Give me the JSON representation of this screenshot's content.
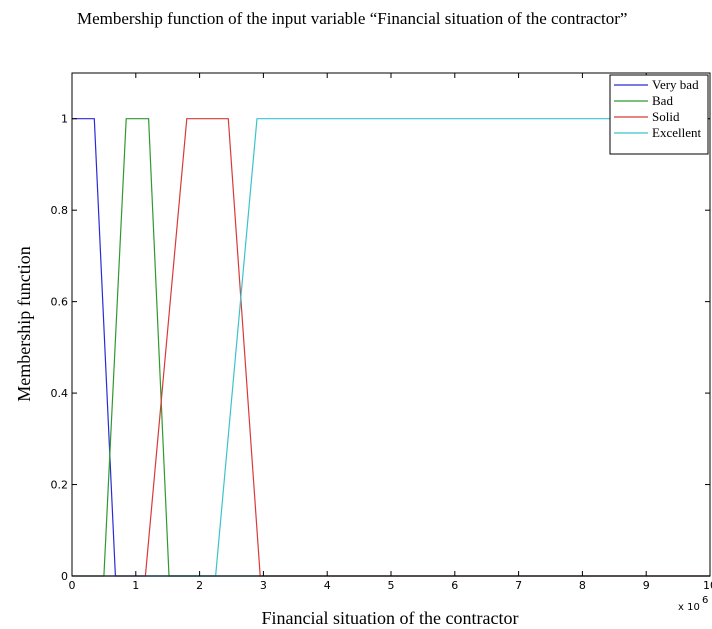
{
  "chart_data": {
    "type": "line",
    "title": "Membership function of the input variable “Financial situation of the contractor”",
    "xlabel": "Financial situation of the contractor",
    "ylabel": "Membership function",
    "x_multiplier_label": "x 10",
    "x_multiplier_exponent": "6",
    "xlim": [
      0,
      10
    ],
    "ylim": [
      0,
      1.1
    ],
    "xticks": [
      "0",
      "1",
      "2",
      "3",
      "4",
      "5",
      "6",
      "7",
      "8",
      "9",
      "10"
    ],
    "yticks": [
      "0",
      "0.2",
      "0.4",
      "0.6",
      "0.8",
      "1"
    ],
    "legend_position": "top-right",
    "series": [
      {
        "name": "Very bad",
        "color": "#2b2bd6",
        "x": [
          0,
          0.35,
          0.68,
          10
        ],
        "y": [
          1,
          1,
          0,
          0
        ]
      },
      {
        "name": "Bad",
        "color": "#2e9a2e",
        "x": [
          0,
          0.5,
          0.85,
          1.2,
          1.52,
          10
        ],
        "y": [
          0,
          0,
          1,
          1,
          0,
          0
        ]
      },
      {
        "name": "Solid",
        "color": "#d83a3a",
        "x": [
          0,
          1.15,
          1.8,
          2.45,
          2.95,
          10
        ],
        "y": [
          0,
          0,
          1,
          1,
          0,
          0
        ]
      },
      {
        "name": "Excellent",
        "color": "#3ac4cc",
        "x": [
          0,
          2.25,
          2.9,
          10
        ],
        "y": [
          0,
          0,
          1,
          1
        ]
      }
    ]
  }
}
